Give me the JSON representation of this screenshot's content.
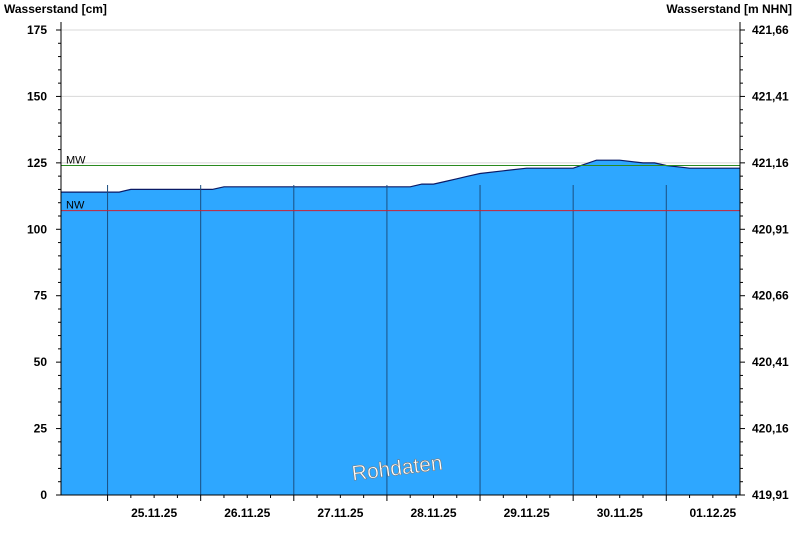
{
  "chart_data": {
    "type": "area",
    "ylabel_left": "Wasserstand [cm]",
    "ylabel_right": "Wasserstand [m NHN]",
    "ylim": [
      0,
      175
    ],
    "yticks_left": [
      "0",
      "25",
      "50",
      "75",
      "100",
      "125",
      "150",
      "175"
    ],
    "yticks_right": [
      "419,91",
      "420,16",
      "420,41",
      "420,66",
      "420,91",
      "421,16",
      "421,41",
      "421,66"
    ],
    "x_start": "24.11.25 12:00",
    "x_end": "01.12.25 19:00",
    "x_tick_labels": [
      "25.11.25",
      "26.11.25",
      "27.11.25",
      "28.11.25",
      "29.11.25",
      "30.11.25",
      "01.12.25"
    ],
    "day_boundaries": [
      "25.11.25",
      "26.11.25",
      "27.11.25",
      "28.11.25",
      "29.11.25",
      "30.11.25",
      "01.12.25"
    ],
    "grid": true,
    "series": [
      {
        "x": [
          "24.11.25 12:00",
          "25.11.25 03:00",
          "25.11.25 06:00",
          "26.11.25 00:00",
          "26.11.25 03:00",
          "26.11.25 06:00",
          "27.11.25 00:00",
          "28.11.25 06:00",
          "28.11.25 09:00",
          "28.11.25 12:00",
          "28.11.25 15:00",
          "28.11.25 18:00",
          "28.11.25 21:00",
          "29.11.25 00:00",
          "29.11.25 06:00",
          "29.11.25 12:00",
          "29.11.25 18:00",
          "30.11.25 00:00",
          "30.11.25 06:00",
          "30.11.25 12:00",
          "30.11.25 18:00",
          "30.11.25 21:00",
          "01.12.25 00:00",
          "01.12.25 06:00",
          "01.12.25 19:00"
        ],
        "values": [
          114,
          114,
          115,
          115,
          115,
          116,
          116,
          116,
          117,
          117,
          118,
          119,
          120,
          121,
          122,
          123,
          123,
          123,
          126,
          126,
          125,
          125,
          124,
          123,
          123
        ]
      }
    ],
    "reference_lines": [
      {
        "label": "MW",
        "value": 124,
        "color": "#2a8a1f"
      },
      {
        "label": "NW",
        "value": 107,
        "color": "#cc2233"
      }
    ],
    "annotation": "Rohdaten",
    "colors": {
      "fill": "#2ea7ff",
      "line": "#0a1a66",
      "day_line": "#1b4f80"
    }
  }
}
